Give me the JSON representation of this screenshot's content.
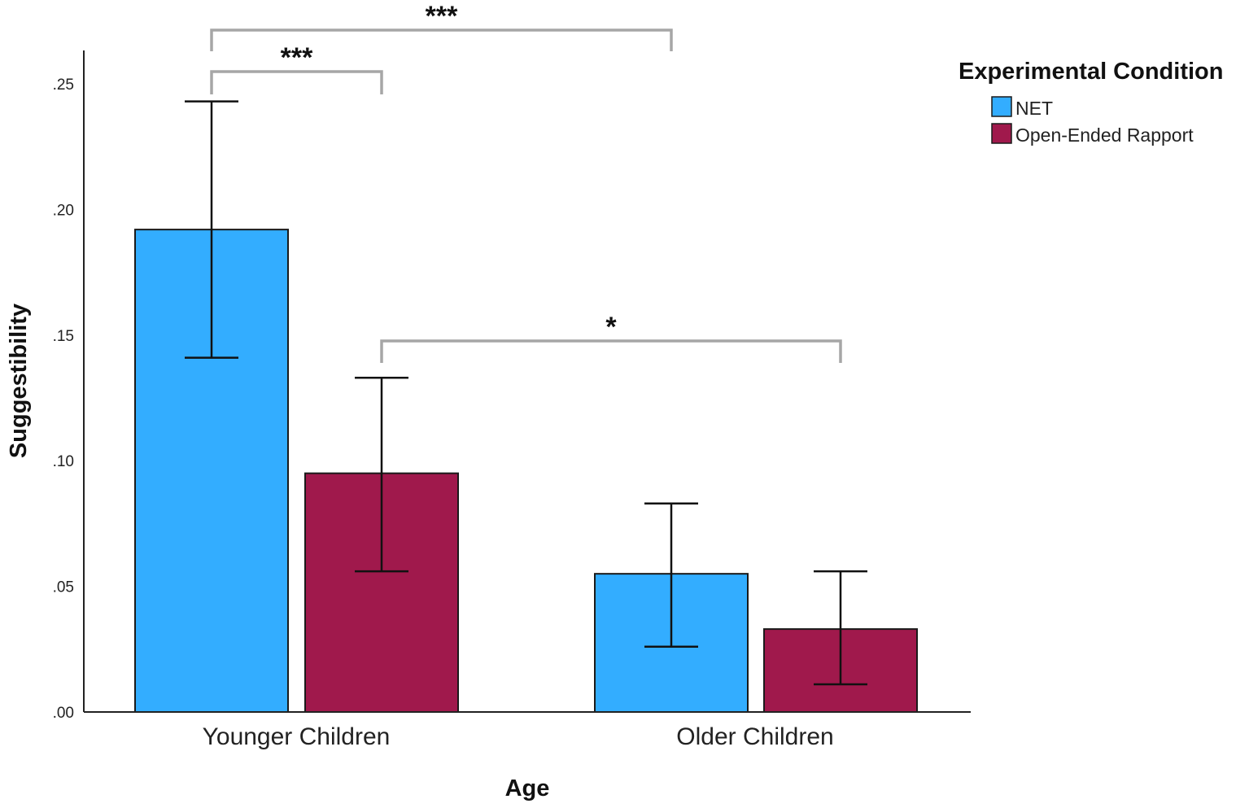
{
  "chart_data": {
    "type": "bar",
    "title": "",
    "xlabel": "Age",
    "ylabel": "Suggestibility",
    "ylim": [
      0,
      0.25
    ],
    "ytick_values": [
      0,
      0.05,
      0.1,
      0.15,
      0.2,
      0.25
    ],
    "ytick_labels": [
      ".00",
      ".05",
      ".10",
      ".15",
      ".20",
      ".25"
    ],
    "categories": [
      "Younger Children",
      "Older Children"
    ],
    "legend_title": "Experimental Condition",
    "legend_position": "top-right",
    "series": [
      {
        "name": "NET",
        "color": "#33adff",
        "values": [
          0.192,
          0.055
        ],
        "ci_lower": [
          0.141,
          0.026
        ],
        "ci_upper": [
          0.243,
          0.083
        ]
      },
      {
        "name": "Open-Ended Rapport",
        "color": "#a0194c",
        "values": [
          0.095,
          0.033
        ],
        "ci_lower": [
          0.056,
          0.011
        ],
        "ci_upper": [
          0.133,
          0.056
        ]
      }
    ],
    "significance": [
      {
        "label": "***",
        "from": {
          "category": 0,
          "series": 0
        },
        "to": {
          "category": 1,
          "series": 0
        },
        "level": 2
      },
      {
        "label": "***",
        "from": {
          "category": 0,
          "series": 0
        },
        "to": {
          "category": 0,
          "series": 1
        },
        "level": 1
      },
      {
        "label": "*",
        "from": {
          "category": 0,
          "series": 1
        },
        "to": {
          "category": 1,
          "series": 1
        },
        "level": 0
      }
    ]
  }
}
